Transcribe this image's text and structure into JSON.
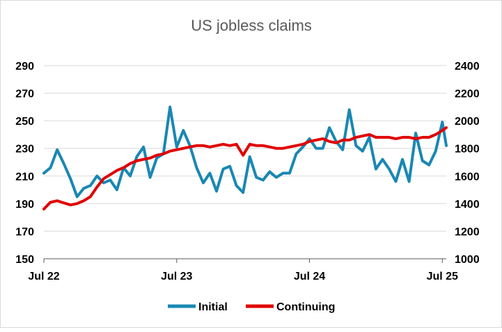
{
  "chart_data": {
    "type": "line",
    "title": "US jobless claims",
    "x_range": [
      "Jul 22",
      "Jul 25"
    ],
    "x_tick_labels": [
      "Jul 22",
      "Jul 23",
      "Jul 24",
      "Jul 25"
    ],
    "y_left": {
      "min": 150,
      "max": 290,
      "ticks": [
        "290",
        "270",
        "250",
        "230",
        "210",
        "190",
        "170",
        "150"
      ]
    },
    "y_right": {
      "min": 1000,
      "max": 2400,
      "ticks": [
        "2400",
        "2200",
        "2000",
        "1800",
        "1600",
        "1400",
        "1200",
        "1000"
      ]
    },
    "grid": true,
    "legend_position": "bottom",
    "series": [
      {
        "name": "Initial",
        "axis": "left",
        "color": "#1a87b3",
        "x": [
          0.0,
          0.05,
          0.1,
          0.15,
          0.2,
          0.25,
          0.3,
          0.35,
          0.4,
          0.45,
          0.5,
          0.55,
          0.6,
          0.65,
          0.7,
          0.75,
          0.8,
          0.85,
          0.9,
          0.95,
          1.0,
          1.05,
          1.1,
          1.15,
          1.2,
          1.25,
          1.3,
          1.35,
          1.4,
          1.45,
          1.5,
          1.55,
          1.6,
          1.65,
          1.7,
          1.75,
          1.8,
          1.85,
          1.9,
          1.95,
          2.0,
          2.05,
          2.1,
          2.15,
          2.2,
          2.25,
          2.3,
          2.35,
          2.4,
          2.45,
          2.5,
          2.55,
          2.6,
          2.65,
          2.7,
          2.75,
          2.8,
          2.85,
          2.9,
          2.95,
          3.0,
          3.03
        ],
        "y": [
          212,
          216,
          229,
          219,
          208,
          195,
          201,
          203,
          210,
          205,
          207,
          200,
          216,
          210,
          224,
          231,
          209,
          223,
          226,
          260,
          231,
          243,
          232,
          216,
          205,
          212,
          199,
          215,
          217,
          203,
          198,
          224,
          209,
          207,
          213,
          209,
          212,
          212,
          226,
          231,
          237,
          230,
          230,
          245,
          235,
          229,
          258,
          232,
          228,
          238,
          215,
          222,
          215,
          206,
          222,
          206,
          241,
          221,
          218,
          228,
          249,
          232
        ]
      },
      {
        "name": "Continuing",
        "axis": "right",
        "color": "#e00000",
        "x": [
          0.0,
          0.05,
          0.1,
          0.15,
          0.2,
          0.25,
          0.3,
          0.35,
          0.4,
          0.45,
          0.5,
          0.55,
          0.6,
          0.65,
          0.7,
          0.75,
          0.8,
          0.85,
          0.9,
          0.95,
          1.0,
          1.05,
          1.1,
          1.15,
          1.2,
          1.25,
          1.3,
          1.35,
          1.4,
          1.45,
          1.5,
          1.55,
          1.6,
          1.65,
          1.7,
          1.75,
          1.8,
          1.85,
          1.9,
          1.95,
          2.0,
          2.05,
          2.1,
          2.15,
          2.2,
          2.25,
          2.3,
          2.35,
          2.4,
          2.45,
          2.5,
          2.55,
          2.6,
          2.65,
          2.7,
          2.75,
          2.8,
          2.85,
          2.9,
          2.95,
          3.0,
          3.03
        ],
        "y": [
          1360,
          1410,
          1420,
          1405,
          1390,
          1400,
          1420,
          1450,
          1520,
          1580,
          1610,
          1640,
          1660,
          1690,
          1710,
          1720,
          1730,
          1750,
          1760,
          1780,
          1790,
          1800,
          1810,
          1820,
          1820,
          1810,
          1820,
          1830,
          1820,
          1830,
          1750,
          1830,
          1820,
          1820,
          1810,
          1800,
          1800,
          1810,
          1820,
          1830,
          1850,
          1860,
          1870,
          1850,
          1840,
          1860,
          1860,
          1880,
          1890,
          1900,
          1880,
          1880,
          1880,
          1870,
          1880,
          1880,
          1870,
          1880,
          1880,
          1900,
          1930,
          1950
        ]
      }
    ]
  }
}
